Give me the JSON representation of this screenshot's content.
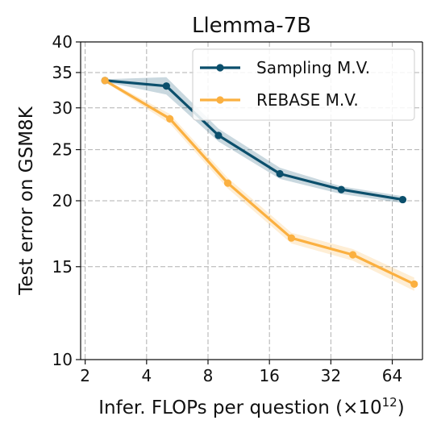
{
  "chart_data": {
    "type": "line",
    "title": "Llemma-7B",
    "xlabel": "Infer. FLOPs per question (×10",
    "xlabel_exponent": "12",
    "xlabel_suffix": ")",
    "ylabel": "Test error on GSM8K",
    "x_scale": "log2",
    "y_scale": "log",
    "xlim": [
      1.9,
      90
    ],
    "ylim": [
      10,
      40
    ],
    "xticks": [
      2,
      4,
      8,
      16,
      32,
      64
    ],
    "xtick_labels": [
      "2",
      "4",
      "8",
      "16",
      "32",
      "64"
    ],
    "yticks": [
      10,
      15,
      20,
      25,
      30,
      35,
      40
    ],
    "ytick_labels": [
      "10",
      "15",
      "20",
      "25",
      "30",
      "35",
      "40"
    ],
    "grid": true,
    "legend_position": "top-right",
    "series": [
      {
        "name": "Sampling M.V.",
        "color": "#0b4f6c",
        "band_color": "#0b4f6c",
        "x": [
          2.5,
          5.0,
          9.0,
          18.0,
          36.0,
          72.0
        ],
        "y": [
          33.8,
          33.0,
          26.6,
          22.5,
          21.0,
          20.1
        ],
        "y_low": [
          33.6,
          31.8,
          25.9,
          22.0,
          20.6,
          19.8
        ],
        "y_high": [
          34.0,
          34.3,
          27.4,
          23.1,
          21.3,
          20.4
        ]
      },
      {
        "name": "REBASE M.V.",
        "color": "#fbb040",
        "band_color": "#fbb040",
        "x": [
          2.5,
          5.2,
          10.0,
          20.5,
          41.0,
          82.0
        ],
        "y": [
          33.8,
          28.6,
          21.6,
          17.0,
          15.8,
          13.9
        ],
        "y_low": [
          33.6,
          28.0,
          21.1,
          16.6,
          15.4,
          13.5
        ],
        "y_high": [
          34.0,
          29.2,
          22.1,
          17.4,
          16.2,
          14.3
        ]
      }
    ]
  }
}
